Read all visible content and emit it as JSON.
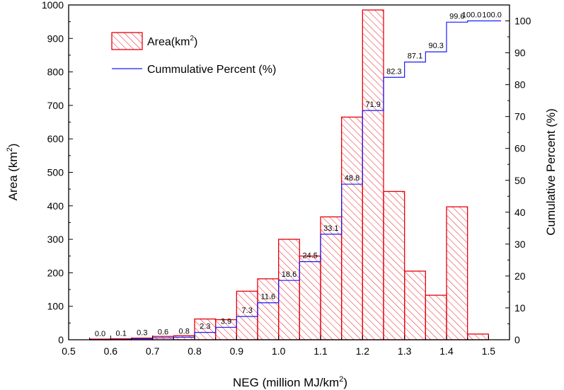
{
  "chart_data": {
    "type": "bar",
    "title": "",
    "xlabel": "NEG (million MJ/km",
    "xlabel_sup": "2",
    "xlabel_tail": ")",
    "ylabel": "Area (km",
    "ylabel_sup": "2",
    "ylabel_tail": ")",
    "y2label": "Cumulative Percent (%)",
    "xlim": [
      0.5,
      1.55
    ],
    "ylim": [
      0,
      1000
    ],
    "y2lim": [
      0,
      105
    ],
    "x_ticks": [
      "0.5",
      "0.6",
      "0.7",
      "0.8",
      "0.9",
      "1.0",
      "1.1",
      "1.2",
      "1.3",
      "1.4",
      "1.5"
    ],
    "y_ticks": [
      "0",
      "100",
      "200",
      "300",
      "400",
      "500",
      "600",
      "700",
      "800",
      "900",
      "1000"
    ],
    "y2_ticks": [
      "0",
      "10",
      "20",
      "30",
      "40",
      "50",
      "60",
      "70",
      "80",
      "90",
      "100"
    ],
    "colors": {
      "bar": "#e8000b",
      "line": "#1a1aff"
    },
    "series": [
      {
        "name": "Area(km",
        "name_sup": "2",
        "name_tail": ")",
        "kind": "bar",
        "bin_width": 0.05,
        "bin_starts": [
          0.55,
          0.6,
          0.65,
          0.7,
          0.75,
          0.8,
          0.85,
          0.9,
          0.95,
          1.0,
          1.05,
          1.1,
          1.15,
          1.2,
          1.25,
          1.3,
          1.35,
          1.4,
          1.45
        ],
        "values": [
          2,
          3,
          5,
          10,
          12,
          62,
          60,
          145,
          182,
          300,
          250,
          367,
          665,
          985,
          443,
          205,
          133,
          397,
          17
        ]
      },
      {
        "name": "Cummulative Percent (%)",
        "kind": "step",
        "x_starts": [
          0.55,
          0.6,
          0.65,
          0.7,
          0.75,
          0.8,
          0.85,
          0.9,
          0.95,
          1.0,
          1.05,
          1.1,
          1.15,
          1.2,
          1.25,
          1.3,
          1.35,
          1.4,
          1.45
        ],
        "x_end": 1.53,
        "values": [
          0.0,
          0.1,
          0.3,
          0.6,
          0.8,
          2.3,
          3.9,
          7.3,
          11.6,
          18.6,
          24.5,
          33.1,
          48.8,
          71.9,
          82.3,
          87.1,
          90.3,
          99.6,
          100.0
        ],
        "labels": [
          "0.0",
          "0.1",
          "0.3",
          "0.6",
          "0.8",
          "2.3",
          "3.9",
          "7.3",
          "11.6",
          "18.6",
          "24.5",
          "33.1",
          "48.8",
          "71.9",
          "82.3",
          "87.1",
          "90.3",
          "99.6",
          "100.0",
          "100.0"
        ]
      }
    ],
    "legend_position": "top-left"
  }
}
